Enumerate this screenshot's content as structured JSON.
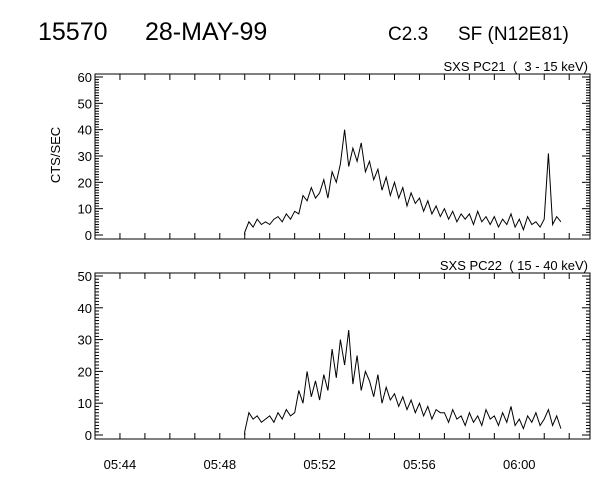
{
  "header": {
    "event_id": "15570",
    "date": "28-MAY-99",
    "goes_class": "C2.3",
    "location": "SF (N12E81)"
  },
  "chart_data": [
    {
      "type": "line",
      "title": "SXS PC21  (  3 - 15 keV)",
      "ylabel": "CTS/SEC",
      "xlabel": "",
      "ylim": [
        0,
        60
      ],
      "yticks": [
        "0",
        "10",
        "20",
        "30",
        "40",
        "50",
        "60"
      ],
      "xlim": [
        "05:43",
        "06:02:50"
      ],
      "xticks": [],
      "grid": false,
      "x_start": "05:49:00",
      "x_step_seconds": 10,
      "values": [
        1,
        5,
        3,
        6,
        4,
        5,
        4,
        6,
        7,
        5,
        8,
        6,
        9,
        8,
        15,
        13,
        18,
        14,
        16,
        21,
        14,
        24,
        20,
        27,
        40,
        26,
        33,
        28,
        35,
        24,
        28,
        21,
        25,
        17,
        22,
        15,
        20,
        14,
        18,
        11,
        16,
        12,
        14,
        9,
        13,
        8,
        11,
        7,
        10,
        6,
        9,
        5,
        8,
        6,
        8,
        4,
        9,
        5,
        7,
        4,
        7,
        3,
        6,
        4,
        8,
        3,
        6,
        2,
        7,
        4,
        5,
        3,
        6,
        31,
        4,
        7,
        5
      ]
    },
    {
      "type": "line",
      "title": "SXS PC22  ( 15 - 40 keV)",
      "ylabel": "",
      "xlabel": "",
      "ylim": [
        0,
        50
      ],
      "yticks": [
        "0",
        "10",
        "20",
        "30",
        "40",
        "50"
      ],
      "xlim": [
        "05:43",
        "06:02:50"
      ],
      "xticks": [
        "05:44",
        "05:48",
        "05:52",
        "05:56",
        "06:00"
      ],
      "grid": false,
      "x_start": "05:49:00",
      "x_step_seconds": 10,
      "values": [
        1,
        7,
        5,
        6,
        4,
        5,
        6,
        4,
        7,
        5,
        8,
        6,
        7,
        14,
        10,
        20,
        12,
        17,
        11,
        19,
        14,
        27,
        18,
        30,
        22,
        33,
        16,
        25,
        14,
        20,
        17,
        12,
        19,
        10,
        15,
        11,
        13,
        9,
        12,
        8,
        11,
        7,
        10,
        6,
        9,
        5,
        8,
        7,
        7,
        4,
        8,
        5,
        6,
        3,
        7,
        4,
        6,
        3,
        8,
        5,
        6,
        3,
        7,
        4,
        9,
        3,
        5,
        2,
        6,
        4,
        7,
        3,
        5,
        8,
        3,
        6,
        2
      ]
    }
  ]
}
